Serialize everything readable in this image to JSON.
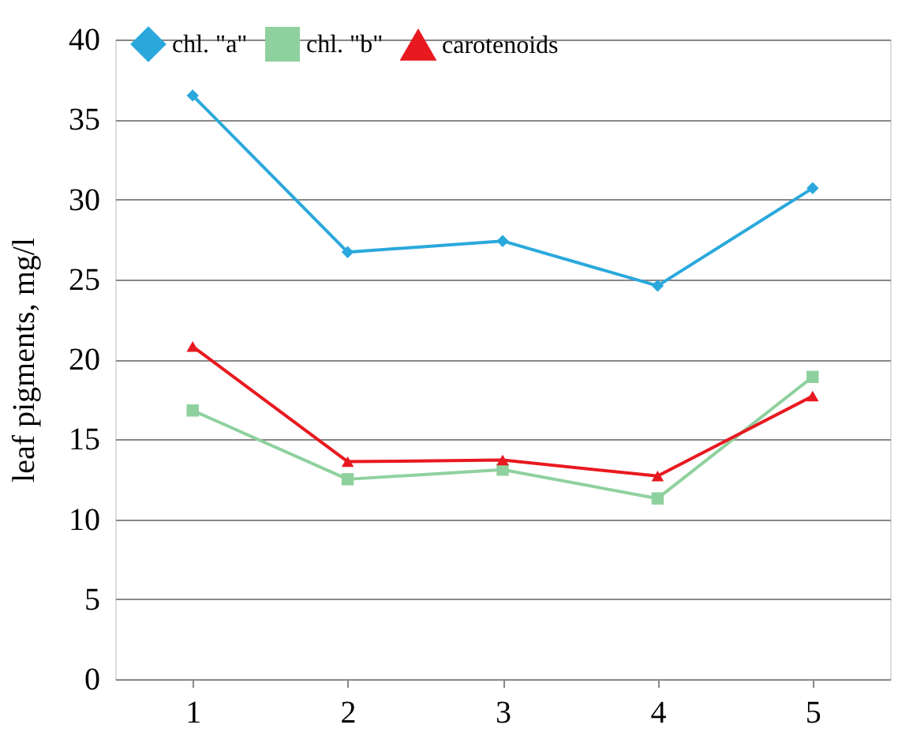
{
  "chart_data": {
    "type": "line",
    "ylabel": "leaf  pigments, mg/l",
    "categories": [
      "1",
      "2",
      "3",
      "4",
      "5"
    ],
    "series": [
      {
        "name": "chl. \"a\"",
        "color": "#2aa8dc",
        "marker": "diamond",
        "values": [
          36.5,
          26.7,
          27.4,
          24.6,
          30.7
        ]
      },
      {
        "name": "chl. \"b\"",
        "color": "#8fd19e",
        "marker": "square",
        "values": [
          16.8,
          12.5,
          13.1,
          11.3,
          18.9
        ]
      },
      {
        "name": "carotenoids",
        "color": "#e8191f",
        "marker": "triangle",
        "values": [
          20.8,
          13.6,
          13.7,
          12.7,
          17.7
        ]
      }
    ],
    "ylim": [
      0,
      40
    ],
    "yticks": [
      0,
      5,
      10,
      15,
      20,
      25,
      30,
      35,
      40
    ],
    "grid": "y",
    "legend": "top",
    "line_style": "solid"
  }
}
